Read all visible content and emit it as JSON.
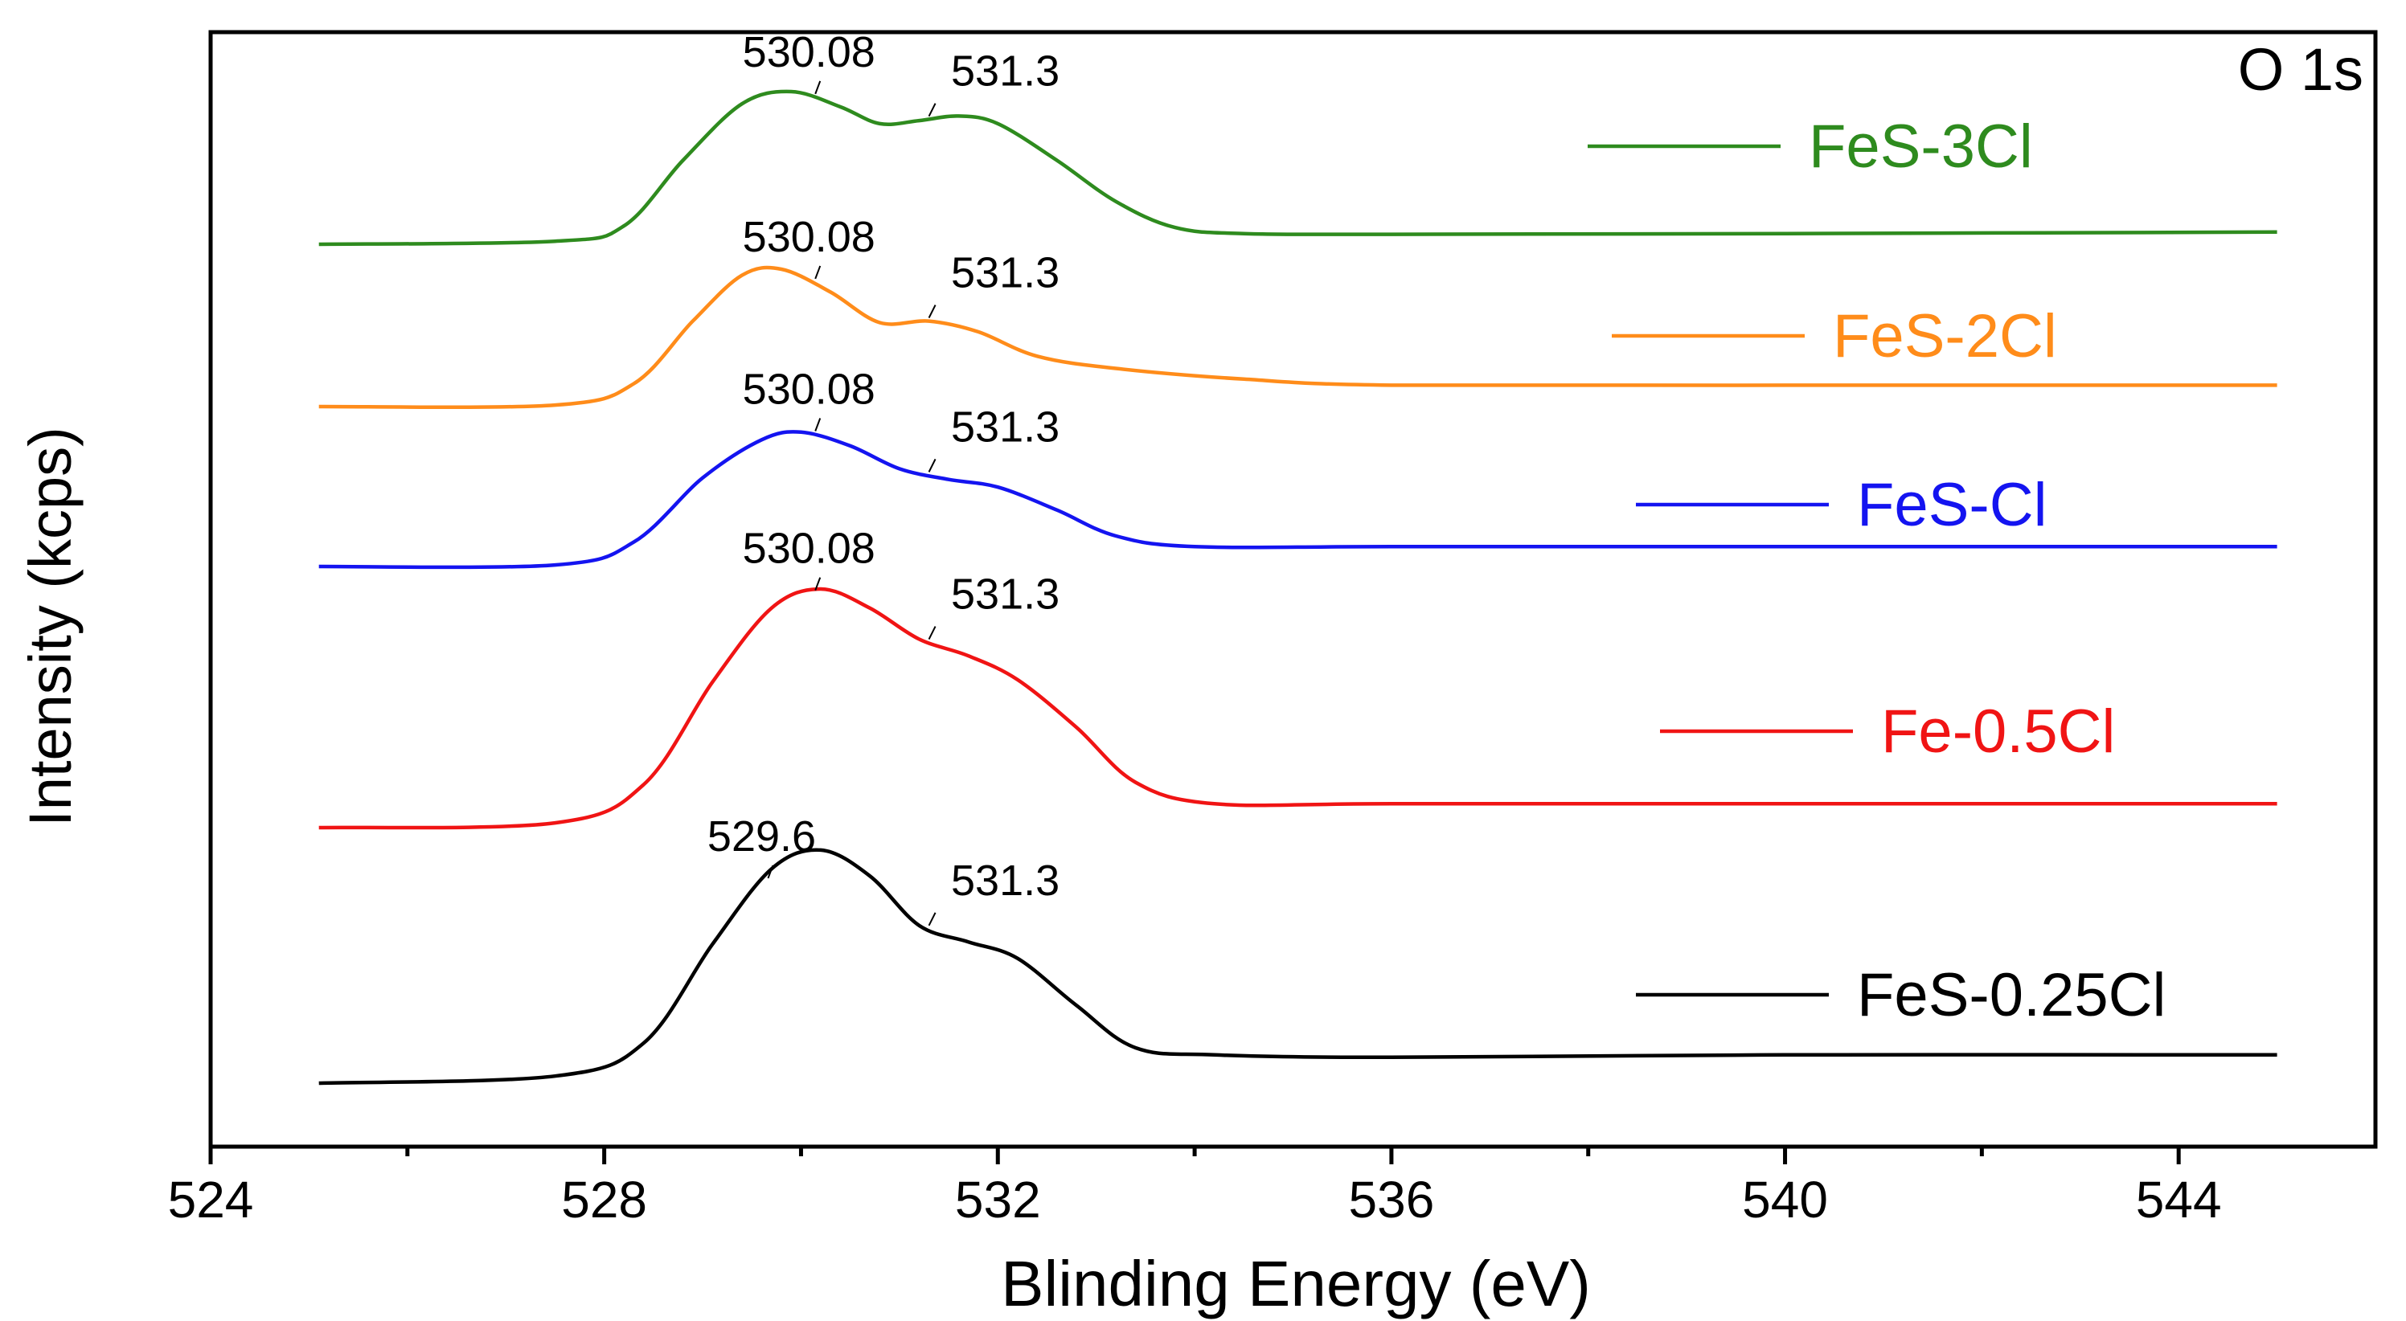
{
  "chart_data": {
    "type": "line",
    "title": "O 1s",
    "xlabel": "Blinding Energy (eV)",
    "ylabel": "Intensity (kcps)",
    "xlim": [
      524,
      546
    ],
    "x_ticks": [
      524,
      528,
      532,
      536,
      540,
      544
    ],
    "x_minor_ticks": [
      526,
      530,
      534,
      538,
      542
    ],
    "y_ticks_shown": false,
    "series": [
      {
        "name": "FeS-3Cl",
        "color": "#2e8b1e",
        "points": [
          [
            525.1,
            0.0
          ],
          [
            527.5,
            0.02
          ],
          [
            528.2,
            0.12
          ],
          [
            528.8,
            0.55
          ],
          [
            529.4,
            0.92
          ],
          [
            529.9,
            1.0
          ],
          [
            530.4,
            0.9
          ],
          [
            530.8,
            0.79
          ],
          [
            531.2,
            0.81
          ],
          [
            531.6,
            0.84
          ],
          [
            532.0,
            0.79
          ],
          [
            532.6,
            0.55
          ],
          [
            533.2,
            0.28
          ],
          [
            533.8,
            0.11
          ],
          [
            534.5,
            0.07
          ],
          [
            536.0,
            0.065
          ],
          [
            540.0,
            0.07
          ],
          [
            545.0,
            0.08
          ]
        ],
        "annotations": [
          {
            "x": 530.08,
            "label": "530.08"
          },
          {
            "x": 531.3,
            "label": "531.3"
          }
        ]
      },
      {
        "name": "FeS-2Cl",
        "color": "#ff8c1a",
        "points": [
          [
            525.1,
            0.0
          ],
          [
            527.5,
            0.01
          ],
          [
            528.3,
            0.15
          ],
          [
            528.9,
            0.56
          ],
          [
            529.4,
            0.86
          ],
          [
            529.8,
            0.9
          ],
          [
            530.3,
            0.75
          ],
          [
            530.8,
            0.55
          ],
          [
            531.3,
            0.56
          ],
          [
            531.8,
            0.49
          ],
          [
            532.4,
            0.33
          ],
          [
            533.2,
            0.25
          ],
          [
            534.5,
            0.18
          ],
          [
            536.0,
            0.14
          ],
          [
            540.0,
            0.14
          ],
          [
            545.0,
            0.14
          ]
        ],
        "annotations": [
          {
            "x": 530.08,
            "label": "530.08"
          },
          {
            "x": 531.3,
            "label": "531.3"
          }
        ]
      },
      {
        "name": "FeS-Cl",
        "color": "#1414f0",
        "points": [
          [
            525.1,
            0.0
          ],
          [
            527.5,
            0.01
          ],
          [
            528.3,
            0.16
          ],
          [
            529.0,
            0.58
          ],
          [
            529.6,
            0.83
          ],
          [
            530.0,
            0.88
          ],
          [
            530.5,
            0.79
          ],
          [
            531.0,
            0.64
          ],
          [
            531.5,
            0.57
          ],
          [
            532.0,
            0.52
          ],
          [
            532.6,
            0.37
          ],
          [
            533.2,
            0.2
          ],
          [
            534.0,
            0.13
          ],
          [
            536.0,
            0.13
          ],
          [
            540.0,
            0.13
          ],
          [
            545.0,
            0.13
          ]
        ],
        "annotations": [
          {
            "x": 530.08,
            "label": "530.08"
          },
          {
            "x": 531.3,
            "label": "531.3"
          }
        ]
      },
      {
        "name": "Fe-0.5Cl",
        "color": "#f01414",
        "points": [
          [
            525.1,
            0.0
          ],
          [
            527.5,
            0.02
          ],
          [
            528.4,
            0.18
          ],
          [
            529.1,
            0.61
          ],
          [
            529.7,
            0.92
          ],
          [
            530.2,
            1.0
          ],
          [
            530.7,
            0.92
          ],
          [
            531.2,
            0.79
          ],
          [
            531.7,
            0.72
          ],
          [
            532.2,
            0.62
          ],
          [
            532.8,
            0.42
          ],
          [
            533.4,
            0.19
          ],
          [
            534.2,
            0.1
          ],
          [
            536.0,
            0.1
          ],
          [
            540.0,
            0.1
          ],
          [
            545.0,
            0.1
          ]
        ],
        "annotations": [
          {
            "x": 530.08,
            "label": "530.08"
          },
          {
            "x": 531.3,
            "label": "531.3"
          }
        ]
      },
      {
        "name": "FeS-0.25Cl",
        "color": "#000000",
        "points": [
          [
            525.1,
            0.0
          ],
          [
            527.5,
            0.03
          ],
          [
            528.4,
            0.17
          ],
          [
            529.1,
            0.59
          ],
          [
            529.7,
            0.91
          ],
          [
            530.2,
            0.99
          ],
          [
            530.7,
            0.88
          ],
          [
            531.2,
            0.67
          ],
          [
            531.7,
            0.6
          ],
          [
            532.2,
            0.53
          ],
          [
            532.8,
            0.33
          ],
          [
            533.4,
            0.15
          ],
          [
            534.2,
            0.12
          ],
          [
            536.0,
            0.11
          ],
          [
            540.0,
            0.12
          ],
          [
            545.0,
            0.12
          ]
        ],
        "annotations": [
          {
            "x": 529.6,
            "label": "529.6"
          },
          {
            "x": 531.3,
            "label": "531.3"
          }
        ]
      }
    ],
    "legend": "right"
  }
}
